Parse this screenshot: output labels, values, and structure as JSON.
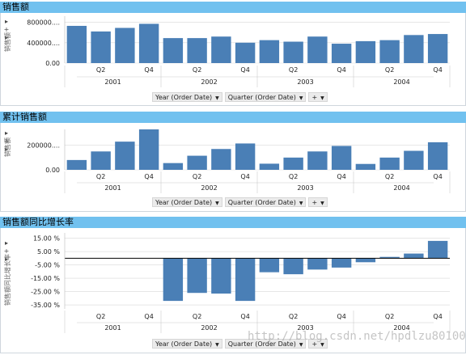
{
  "colors": {
    "bar": "#4a7fb6",
    "header": "#71c1ef",
    "grid": "#d9d9d9",
    "axis": "#000000"
  },
  "controls": {
    "year_label": "Year (Order Date)",
    "quarter_label": "Quarter (Order Date)",
    "plus_label": "+"
  },
  "watermark": "http://blog.csdn.net/hpdlzu80100",
  "chart_data": [
    {
      "type": "bar",
      "title": "销售额",
      "ylabel": "销售额",
      "quarter_ticks": [
        "Q2",
        "Q4",
        "Q2",
        "Q4",
        "Q2",
        "Q4",
        "Q2",
        "Q4"
      ],
      "quarter_tick_index": [
        1,
        3,
        5,
        7,
        9,
        11,
        13,
        15
      ],
      "year_labels": [
        "2001",
        "2002",
        "2003",
        "2004"
      ],
      "y_ticks": [
        800000,
        400000,
        0
      ],
      "y_tick_labels": [
        "800000....",
        "400000....",
        "0.00"
      ],
      "ylim": [
        0,
        920000
      ],
      "values": [
        730000,
        620000,
        690000,
        770000,
        490000,
        490000,
        520000,
        400000,
        450000,
        420000,
        520000,
        380000,
        430000,
        450000,
        550000,
        570000
      ]
    },
    {
      "type": "bar",
      "title": "累计销售额",
      "ylabel": "销售额",
      "quarter_ticks": [
        "Q2",
        "Q4",
        "Q2",
        "Q4",
        "Q2",
        "Q4",
        "Q2",
        "Q4"
      ],
      "quarter_tick_index": [
        1,
        3,
        5,
        7,
        9,
        11,
        13,
        15
      ],
      "year_labels": [
        "2001",
        "2002",
        "2003",
        "2004"
      ],
      "y_ticks": [
        200000,
        0
      ],
      "y_tick_labels": [
        "200000....",
        "0.00"
      ],
      "ylim": [
        0,
        330000
      ],
      "values": [
        80000,
        150000,
        230000,
        330000,
        55000,
        115000,
        170000,
        215000,
        50000,
        100000,
        150000,
        195000,
        48000,
        100000,
        155000,
        225000
      ]
    },
    {
      "type": "bar",
      "title": "销售额同比增长率",
      "ylabel": "销售额同比增长率",
      "quarter_ticks": [
        "Q2",
        "Q4",
        "Q2",
        "Q4",
        "Q2",
        "Q4",
        "Q2",
        "Q4"
      ],
      "quarter_tick_index": [
        1,
        3,
        5,
        7,
        9,
        11,
        13,
        15
      ],
      "year_labels": [
        "2001",
        "2002",
        "2003",
        "2004"
      ],
      "y_ticks": [
        15,
        5,
        -5,
        -15,
        -25,
        -35
      ],
      "y_tick_labels": [
        "15.00 %",
        "5.00 %",
        "-5.00 %",
        "-15.00 %",
        "-25.00 %",
        "-35.00 %"
      ],
      "ylim": [
        -38,
        19
      ],
      "values": [
        null,
        null,
        null,
        null,
        -32,
        -26,
        -26.5,
        -32,
        -10.5,
        -12,
        -8.5,
        -7,
        -3,
        1,
        3.5,
        13
      ]
    }
  ]
}
